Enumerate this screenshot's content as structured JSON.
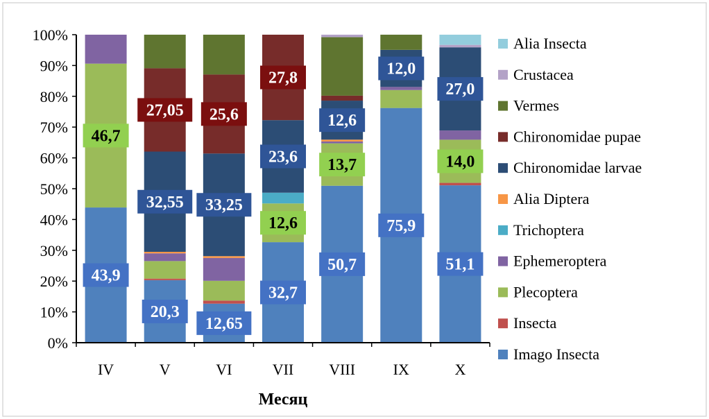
{
  "chart_data": {
    "type": "bar",
    "stacked": "percent",
    "xlabel": "Месяц",
    "ylabel": "",
    "ylim": [
      0,
      100
    ],
    "y_ticks": [
      "0%",
      "10%",
      "20%",
      "30%",
      "40%",
      "50%",
      "60%",
      "70%",
      "80%",
      "90%",
      "100%"
    ],
    "categories": [
      "IV",
      "V",
      "VI",
      "VII",
      "VIII",
      "IX",
      "X"
    ],
    "legend_position": "right",
    "grid": false,
    "series": [
      {
        "name": "Imago Insecta",
        "color": "#4f81bd",
        "values": [
          43.9,
          20.3,
          12.65,
          32.7,
          50.7,
          75.9,
          51.1
        ]
      },
      {
        "name": "Insecta",
        "color": "#c0504d",
        "values": [
          0,
          0.5,
          1.0,
          0,
          0,
          0,
          0.8
        ]
      },
      {
        "name": "Plecoptera",
        "color": "#9bbb59",
        "values": [
          46.7,
          5.7,
          6.4,
          12.6,
          13.7,
          5.8,
          14.0
        ]
      },
      {
        "name": "Ephemeroptera",
        "color": "#8064a2",
        "values": [
          9.4,
          2.5,
          7.4,
          0,
          0.6,
          1.0,
          3.0
        ]
      },
      {
        "name": "Trichoptera",
        "color": "#4bacc6",
        "values": [
          0,
          0,
          0,
          3.5,
          0,
          0,
          0
        ]
      },
      {
        "name": "Alia Diptera",
        "color": "#f79646",
        "values": [
          0,
          0.5,
          0.6,
          0,
          0.6,
          0,
          0
        ]
      },
      {
        "name": "Chironomidae  larvae",
        "color": "#2c4d75",
        "values": [
          0,
          32.55,
          33.25,
          23.6,
          12.6,
          12.0,
          27.0
        ]
      },
      {
        "name": "Chironomidae pupae",
        "color": "#772c2a",
        "values": [
          0,
          27.05,
          25.6,
          27.8,
          1.6,
          0,
          0
        ]
      },
      {
        "name": "Vermes",
        "color": "#5f7530",
        "values": [
          0,
          10.9,
          12.9,
          0,
          18.9,
          4.9,
          0
        ]
      },
      {
        "name": "Crustacea",
        "color": "#b3a2c7",
        "values": [
          0,
          0,
          0,
          0,
          0.8,
          0,
          0.8
        ]
      },
      {
        "name": "Alia Insecta",
        "color": "#93cddd",
        "values": [
          0,
          0,
          0,
          0,
          0,
          0,
          3.3
        ]
      }
    ],
    "data_labels": [
      {
        "category": "IV",
        "series": "Imago Insecta",
        "text": "43,9"
      },
      {
        "category": "IV",
        "series": "Plecoptera",
        "text": "46,7"
      },
      {
        "category": "V",
        "series": "Imago Insecta",
        "text": "20,3"
      },
      {
        "category": "V",
        "series": "Chironomidae  larvae",
        "text": "32,55"
      },
      {
        "category": "V",
        "series": "Chironomidae pupae",
        "text": "27,05"
      },
      {
        "category": "VI",
        "series": "Imago Insecta",
        "text": "12,65"
      },
      {
        "category": "VI",
        "series": "Chironomidae  larvae",
        "text": "33,25"
      },
      {
        "category": "VI",
        "series": "Chironomidae pupae",
        "text": "25,6"
      },
      {
        "category": "VII",
        "series": "Imago Insecta",
        "text": "32,7"
      },
      {
        "category": "VII",
        "series": "Plecoptera",
        "text": "12,6"
      },
      {
        "category": "VII",
        "series": "Chironomidae  larvae",
        "text": "23,6"
      },
      {
        "category": "VII",
        "series": "Chironomidae pupae",
        "text": "27,8"
      },
      {
        "category": "VIII",
        "series": "Imago Insecta",
        "text": "50,7"
      },
      {
        "category": "VIII",
        "series": "Plecoptera",
        "text": "13,7"
      },
      {
        "category": "VIII",
        "series": "Chironomidae  larvae",
        "text": "12,6"
      },
      {
        "category": "IX",
        "series": "Imago Insecta",
        "text": "75,9"
      },
      {
        "category": "IX",
        "series": "Chironomidae  larvae",
        "text": "12,0"
      },
      {
        "category": "X",
        "series": "Imago Insecta",
        "text": "51,1"
      },
      {
        "category": "X",
        "series": "Plecoptera",
        "text": "14,0"
      },
      {
        "category": "X",
        "series": "Chironomidae  larvae",
        "text": "27,0"
      }
    ]
  }
}
